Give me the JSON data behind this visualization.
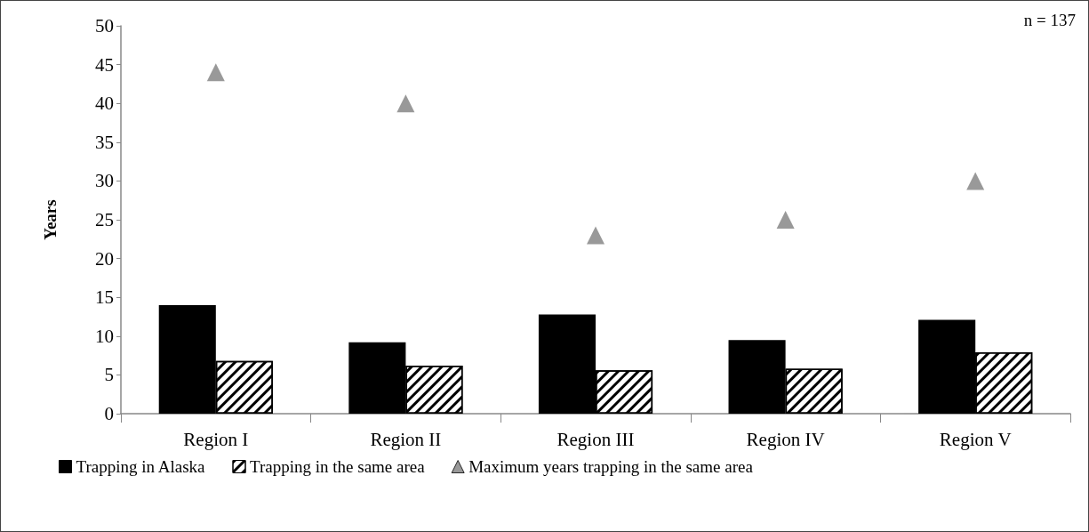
{
  "chart_data": {
    "type": "bar",
    "ylabel": "Years",
    "categories": [
      "Region I",
      "Region II",
      "Region III",
      "Region IV",
      "Region V"
    ],
    "series": [
      {
        "name": "Trapping in Alaska",
        "color": "#000000",
        "values": [
          14.0,
          9.2,
          12.8,
          9.5,
          12.1
        ]
      },
      {
        "name": "Trapping in the same area",
        "color": "#ffffff",
        "values": [
          6.8,
          6.2,
          5.6,
          5.8,
          7.9
        ]
      },
      {
        "name": "Maximum years trapping in the same area",
        "type": "scatter",
        "marker": "triangle",
        "color": "#808080",
        "values": [
          44,
          40,
          23,
          25,
          30
        ]
      }
    ],
    "ylim": [
      0,
      50
    ],
    "yticks": [
      0,
      5,
      10,
      15,
      20,
      25,
      30,
      35,
      40,
      45,
      50
    ],
    "grid": false,
    "legend": "bottom",
    "annotations": [
      "n = 137"
    ]
  }
}
